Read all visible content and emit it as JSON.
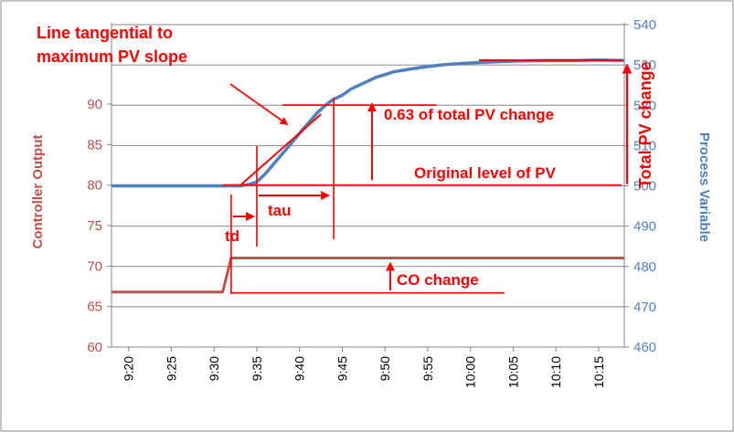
{
  "chart_data": {
    "type": "line",
    "title": "",
    "xlabel": "",
    "ylabel_left": "Controller Output",
    "ylabel_right": "Process Variable",
    "ylim_left": [
      60,
      95
    ],
    "ylim_right": [
      460,
      540
    ],
    "yticks_left": [
      "60",
      "65",
      "70",
      "75",
      "80",
      "85",
      "90"
    ],
    "yticks_right": [
      "460",
      "470",
      "480",
      "490",
      "500",
      "510",
      "520",
      "530",
      "540"
    ],
    "x_range": [
      "9:18",
      "10:18"
    ],
    "x_ticks": [
      "9:20",
      "9:25",
      "9:30",
      "9:35",
      "9:40",
      "9:45",
      "9:50",
      "9:55",
      "10:00",
      "10:05",
      "10:10",
      "10:15"
    ],
    "grid": "horizontal",
    "colors": {
      "co": "#c0504d",
      "pv": "#4f81bd",
      "annotation": "#ff0000",
      "grid": "#868686"
    },
    "series": [
      {
        "name": "Controller Output",
        "axis": "left",
        "x": [
          "9:18",
          "9:31",
          "9:32",
          "10:18"
        ],
        "values": [
          66.8,
          66.8,
          71.0,
          71.0
        ]
      },
      {
        "name": "Process Variable",
        "axis": "right",
        "x": [
          "9:18",
          "9:22",
          "9:25",
          "9:28",
          "9:31",
          "9:33",
          "9:34",
          "9:35",
          "9:36",
          "9:37",
          "9:38",
          "9:39",
          "9:40",
          "9:41",
          "9:42",
          "9:43",
          "9:44",
          "9:45",
          "9:46",
          "9:47",
          "9:48",
          "9:49",
          "9:50",
          "9:51",
          "9:53",
          "9:55",
          "9:57",
          "10:00",
          "10:03",
          "10:06",
          "10:09",
          "10:12",
          "10:15",
          "10:18"
        ],
        "values": [
          500,
          500,
          500,
          500,
          500,
          500,
          500.3,
          501,
          503,
          505.5,
          508,
          510.5,
          513,
          515.5,
          518,
          520,
          521.5,
          522.5,
          524,
          525,
          526,
          527,
          527.6,
          528.3,
          529,
          529.6,
          530.1,
          530.5,
          530.8,
          531,
          531.1,
          531.1,
          531.2,
          531.1
        ]
      }
    ],
    "annotations": [
      {
        "id": "tangent",
        "text": "Line tangential to\nmaximum PV slope"
      },
      {
        "id": "pv-063",
        "text": "0.63 of total PV change"
      },
      {
        "id": "orig-pv",
        "text": "Original level of PV"
      },
      {
        "id": "total-pv",
        "text": "Total PV change"
      },
      {
        "id": "tau",
        "text": "tau"
      },
      {
        "id": "td",
        "text": "td"
      },
      {
        "id": "co-change",
        "text": "CO change"
      }
    ]
  }
}
